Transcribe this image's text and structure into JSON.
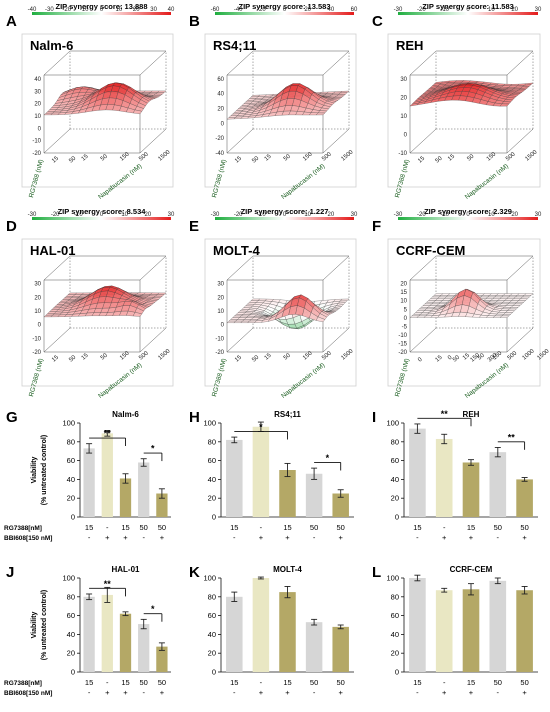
{
  "colors": {
    "low": "#1fae3f",
    "mid": "#ffffff",
    "high": "#e41a1a",
    "bar_grey": "#d6d6d6",
    "bar_cream": "#e9e7c3",
    "bar_olive": "#b4a866",
    "axis_green": "#1b5e20"
  },
  "chart_data": [
    {
      "type": "surface3d",
      "panel": "A",
      "cell_line": "Nalm-6",
      "zip_label": "ZIP synergy score: 13.888",
      "scale_ticks": [
        "-40",
        "-30",
        "-20",
        "-10",
        "0",
        "10",
        "20",
        "30",
        "40"
      ],
      "z_ticks": [
        "-20",
        "-10",
        "0",
        "10",
        "20",
        "30",
        "40"
      ],
      "xlabel": "Napabucasin (nM)",
      "ylabel": "RG7388 (nM)",
      "x_ticks": [
        "15",
        "50",
        "150",
        "500",
        "1500"
      ],
      "y_ticks": [
        "15",
        "50"
      ]
    },
    {
      "type": "surface3d",
      "panel": "B",
      "cell_line": "RS4;11",
      "zip_label": "ZIP synergy score: 13.583",
      "scale_ticks": [
        "-60",
        "-40",
        "-20",
        "0",
        "20",
        "40",
        "60"
      ],
      "z_ticks": [
        "-40",
        "-20",
        "0",
        "20",
        "40",
        "60"
      ],
      "xlabel": "Napabucasin (nM)",
      "ylabel": "RG7388 (nM)",
      "x_ticks": [
        "15",
        "50",
        "150",
        "500",
        "1500"
      ],
      "y_ticks": [
        "15",
        "50"
      ]
    },
    {
      "type": "surface3d",
      "panel": "C",
      "cell_line": "REH",
      "zip_label": "ZIP synergy score: 11.583",
      "scale_ticks": [
        "-30",
        "-20",
        "-10",
        "0",
        "10",
        "20",
        "30"
      ],
      "z_ticks": [
        "-10",
        "0",
        "10",
        "20",
        "30"
      ],
      "xlabel": "Napabucasin (nM)",
      "ylabel": "RG7388 (nM)",
      "x_ticks": [
        "15",
        "50",
        "150",
        "500",
        "1500"
      ],
      "y_ticks": [
        "15",
        "50"
      ]
    },
    {
      "type": "surface3d",
      "panel": "D",
      "cell_line": "HAL-01",
      "zip_label": "ZIP synergy score: 8.534",
      "scale_ticks": [
        "-30",
        "-20",
        "-10",
        "0",
        "10",
        "20",
        "30"
      ],
      "z_ticks": [
        "-20",
        "-10",
        "0",
        "10",
        "20",
        "30"
      ],
      "xlabel": "Napabucasin (nM)",
      "ylabel": "RG7388 (nM)",
      "x_ticks": [
        "15",
        "50",
        "150",
        "500",
        "1500"
      ],
      "y_ticks": [
        "15",
        "50"
      ]
    },
    {
      "type": "surface3d",
      "panel": "E",
      "cell_line": "MOLT-4",
      "zip_label": "ZIP synergy score: 1.227",
      "scale_ticks": [
        "-30",
        "-20",
        "-10",
        "0",
        "10",
        "20",
        "30"
      ],
      "z_ticks": [
        "-20",
        "-10",
        "0",
        "10",
        "20",
        "30"
      ],
      "xlabel": "Napabucasin (nM)",
      "ylabel": "RG7388 (nM)",
      "x_ticks": [
        "15",
        "50",
        "150",
        "500",
        "1500"
      ],
      "y_ticks": [
        "15",
        "50"
      ]
    },
    {
      "type": "surface3d",
      "panel": "F",
      "cell_line": "CCRF-CEM",
      "zip_label": "ZIP synergy score: 2.329",
      "scale_ticks": [
        "-30",
        "-20",
        "-10",
        "0",
        "10",
        "20",
        "30"
      ],
      "z_ticks": [
        "-20",
        "-15",
        "-10",
        "-5",
        "0",
        "5",
        "10",
        "15",
        "20"
      ],
      "xlabel": "Napabucasin (nM)",
      "ylabel": "RG7388 (nM)",
      "x_ticks": [
        "0",
        "15",
        "50",
        "150",
        "500",
        "1000",
        "1500"
      ],
      "y_ticks": [
        "0",
        "15",
        "50",
        "150",
        "300"
      ]
    },
    {
      "type": "bar",
      "panel": "G",
      "title": "Nalm-6",
      "ylabel": [
        "Viability",
        "(% untreated control)"
      ],
      "ylim": [
        0,
        100
      ],
      "y_ticks": [
        "0",
        "20",
        "40",
        "60",
        "80",
        "100"
      ],
      "values": [
        73,
        89,
        41,
        58,
        25
      ],
      "errors": [
        5,
        3,
        5,
        4,
        5
      ],
      "rg": [
        "15",
        "-",
        "15",
        "50",
        "50"
      ],
      "bbi": [
        "-",
        "+",
        "+",
        "-",
        "+"
      ],
      "row_labels": [
        "RG7388[nM]",
        "BBI608[150 nM]"
      ],
      "brackets": [
        {
          "from": 0,
          "to": 2,
          "label": "**"
        },
        {
          "from": 3,
          "to": 4,
          "label": "*"
        }
      ]
    },
    {
      "type": "bar",
      "panel": "H",
      "title": "RS4;11",
      "ylim": [
        0,
        100
      ],
      "y_ticks": [
        "0",
        "20",
        "40",
        "60",
        "80",
        "100"
      ],
      "values": [
        82,
        96,
        50,
        46,
        25
      ],
      "errors": [
        3,
        5,
        7,
        6,
        4
      ],
      "rg": [
        "15",
        "-",
        "15",
        "50",
        "50"
      ],
      "bbi": [
        "-",
        "+",
        "+",
        "-",
        "+"
      ],
      "brackets": [
        {
          "from": 0,
          "to": 2,
          "label": "*"
        },
        {
          "from": 3,
          "to": 4,
          "label": "*"
        }
      ]
    },
    {
      "type": "bar",
      "panel": "I",
      "title": "REH",
      "ylim": [
        0,
        100
      ],
      "y_ticks": [
        "0",
        "20",
        "40",
        "60",
        "80",
        "100"
      ],
      "values": [
        94,
        83,
        58,
        69,
        40
      ],
      "errors": [
        5,
        5,
        3,
        5,
        2
      ],
      "rg": [
        "15",
        "-",
        "15",
        "50",
        "50"
      ],
      "bbi": [
        "-",
        "+",
        "+",
        "-",
        "+"
      ],
      "brackets": [
        {
          "from": 0,
          "to": 2,
          "label": "**"
        },
        {
          "from": 3,
          "to": 4,
          "label": "**"
        }
      ]
    },
    {
      "type": "bar",
      "panel": "J",
      "title": "HAL-01",
      "ylabel": [
        "Viability",
        "(% untreated control)"
      ],
      "ylim": [
        0,
        100
      ],
      "y_ticks": [
        "0",
        "20",
        "40",
        "60",
        "80",
        "100"
      ],
      "values": [
        80,
        82,
        62,
        51,
        27
      ],
      "errors": [
        3,
        8,
        2,
        5,
        4
      ],
      "rg": [
        "15",
        "-",
        "15",
        "50",
        "50"
      ],
      "bbi": [
        "-",
        "+",
        "+",
        "-",
        "+"
      ],
      "row_labels": [
        "RG7388[nM]",
        "BBI608[150 nM]"
      ],
      "brackets": [
        {
          "from": 0,
          "to": 2,
          "label": "**"
        },
        {
          "from": 3,
          "to": 4,
          "label": "*"
        }
      ]
    },
    {
      "type": "bar",
      "panel": "K",
      "title": "MOLT-4",
      "ylim": [
        0,
        100
      ],
      "y_ticks": [
        "0",
        "20",
        "40",
        "60",
        "80",
        "100"
      ],
      "values": [
        80,
        100,
        85,
        53,
        48
      ],
      "errors": [
        5,
        1,
        6,
        3,
        2
      ],
      "rg": [
        "15",
        "-",
        "15",
        "50",
        "50"
      ],
      "bbi": [
        "-",
        "+",
        "+",
        "-",
        "+"
      ],
      "brackets": []
    },
    {
      "type": "bar",
      "panel": "L",
      "title": "CCRF-CEM",
      "ylim": [
        0,
        100
      ],
      "y_ticks": [
        "0",
        "20",
        "40",
        "60",
        "80",
        "100"
      ],
      "values": [
        100,
        87,
        88,
        97,
        87
      ],
      "errors": [
        3,
        2,
        6,
        3,
        4
      ],
      "rg": [
        "15",
        "-",
        "15",
        "50",
        "50"
      ],
      "bbi": [
        "-",
        "+",
        "+",
        "-",
        "+"
      ],
      "brackets": []
    }
  ]
}
